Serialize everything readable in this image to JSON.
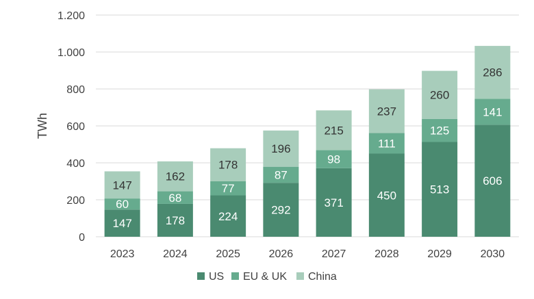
{
  "chart_data": {
    "type": "bar",
    "stacked": true,
    "categories": [
      "2023",
      "2024",
      "2025",
      "2026",
      "2027",
      "2028",
      "2029",
      "2030"
    ],
    "series": [
      {
        "name": "US",
        "color": "#4a8a70",
        "label_color": "#ffffff",
        "values": [
          147,
          178,
          224,
          292,
          371,
          450,
          513,
          606
        ]
      },
      {
        "name": "EU & UK",
        "color": "#66ab8e",
        "label_color": "#ffffff",
        "values": [
          60,
          68,
          77,
          87,
          98,
          111,
          125,
          141
        ]
      },
      {
        "name": "China",
        "color": "#a8cdbb",
        "label_color": "#333333",
        "values": [
          147,
          162,
          178,
          196,
          215,
          237,
          260,
          286
        ]
      }
    ],
    "ylabel": "TWh",
    "xlabel": "",
    "ylim": [
      0,
      1200
    ],
    "yticks": [
      0,
      200,
      400,
      600,
      800,
      1000,
      1200
    ],
    "ytick_labels": [
      "0",
      "200",
      "400",
      "600",
      "800",
      "1.000",
      "1.200"
    ],
    "grid": true,
    "legend_position": "bottom-center"
  }
}
